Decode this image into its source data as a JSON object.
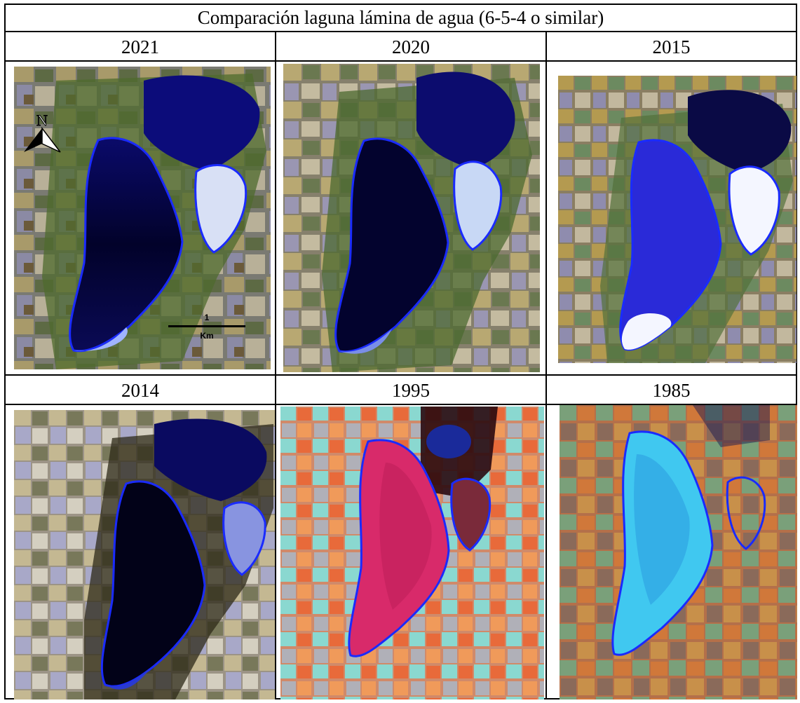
{
  "title": "Comparación laguna lámina de agua (6-5-4 o similar)",
  "panels": [
    {
      "year": "2021",
      "scheme": "natural",
      "north_arrow": true,
      "scale_bar": {
        "value": "1",
        "unit": "Km"
      }
    },
    {
      "year": "2020",
      "scheme": "natural"
    },
    {
      "year": "2015",
      "scheme": "natural-bright"
    },
    {
      "year": "2014",
      "scheme": "natural-hazy"
    },
    {
      "year": "1995",
      "scheme": "false-red"
    },
    {
      "year": "1985",
      "scheme": "false-cyan"
    }
  ],
  "north_label": "N",
  "colors": {
    "outline": "#1a2bff",
    "water_dark": "#05053a",
    "water_blue": "#1b1fd6",
    "veg_green": "#4f6b2e"
  }
}
